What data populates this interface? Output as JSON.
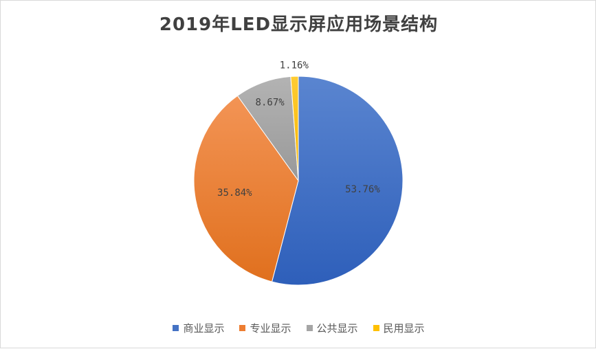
{
  "chart_data": {
    "type": "pie",
    "title": "2019年LED显示屏应用场景结构",
    "categories": [
      "商业显示",
      "专业显示",
      "公共显示",
      "民用显示"
    ],
    "values": [
      53.76,
      35.84,
      8.67,
      1.16
    ],
    "labels": [
      "53.76%",
      "35.84%",
      "8.67%",
      "1.16%"
    ],
    "colors": [
      "#4472c4",
      "#ed7d31",
      "#a5a5a5",
      "#ffc000"
    ],
    "legend_position": "bottom",
    "start_angle_deg": 0,
    "direction": "clockwise"
  }
}
